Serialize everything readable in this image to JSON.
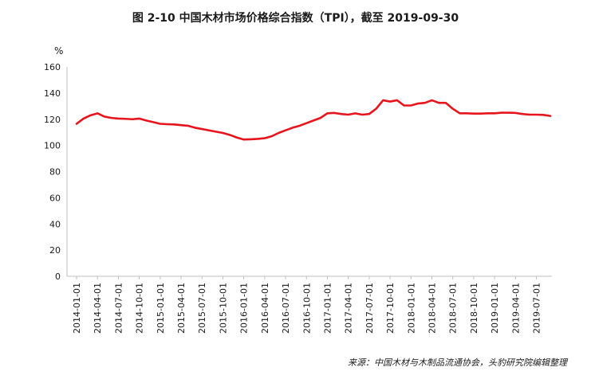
{
  "chart_data": {
    "type": "line",
    "title": "图 2-10 中国木材市场价格综合指数（TPI），截至 2019-09-30",
    "ylabel": "%",
    "source": "来源：中国木材与木制品流通协会，头豹研究院编辑整理",
    "ylim": [
      0,
      160
    ],
    "yticks": [
      0,
      20,
      40,
      60,
      80,
      100,
      120,
      140,
      160
    ],
    "xticks": [
      "2014-01-01",
      "2014-04-01",
      "2014-07-01",
      "2014-10-01",
      "2015-01-01",
      "2015-04-01",
      "2015-07-01",
      "2015-10-01",
      "2016-01-01",
      "2016-04-01",
      "2016-07-01",
      "2016-10-01",
      "2017-01-01",
      "2017-04-01",
      "2017-07-01",
      "2017-10-01",
      "2018-01-01",
      "2018-04-01",
      "2018-07-01",
      "2018-10-01",
      "2019-01-01",
      "2019-04-01",
      "2019-07-01"
    ],
    "grid": false,
    "series": [
      {
        "name": "",
        "color": "#e8141b",
        "x": [
          "2014-01",
          "2014-02",
          "2014-03",
          "2014-04",
          "2014-05",
          "2014-06",
          "2014-07",
          "2014-08",
          "2014-09",
          "2014-10",
          "2014-11",
          "2014-12",
          "2015-01",
          "2015-02",
          "2015-03",
          "2015-04",
          "2015-05",
          "2015-06",
          "2015-07",
          "2015-08",
          "2015-09",
          "2015-10",
          "2015-11",
          "2015-12",
          "2016-01",
          "2016-02",
          "2016-03",
          "2016-04",
          "2016-05",
          "2016-06",
          "2016-07",
          "2016-08",
          "2016-09",
          "2016-10",
          "2016-11",
          "2016-12",
          "2017-01",
          "2017-02",
          "2017-03",
          "2017-04",
          "2017-05",
          "2017-06",
          "2017-07",
          "2017-08",
          "2017-09",
          "2017-10",
          "2017-11",
          "2017-12",
          "2018-01",
          "2018-02",
          "2018-03",
          "2018-04",
          "2018-05",
          "2018-06",
          "2018-07",
          "2018-08",
          "2018-09",
          "2018-10",
          "2018-11",
          "2018-12",
          "2019-01",
          "2019-02",
          "2019-03",
          "2019-04",
          "2019-05",
          "2019-06",
          "2019-07",
          "2019-08",
          "2019-09"
        ],
        "values": [
          116.5,
          120.5,
          123,
          124.5,
          122,
          121,
          120.5,
          120.3,
          120,
          120.5,
          119,
          117.8,
          116.5,
          116.2,
          116,
          115.5,
          115,
          113.5,
          112.5,
          111.5,
          110.5,
          109.5,
          108,
          106,
          104.5,
          104.7,
          105,
          105.5,
          107,
          109.5,
          111.5,
          113.5,
          115,
          117,
          119,
          121,
          124.5,
          124.8,
          124,
          123.5,
          124.5,
          123.5,
          124,
          128,
          134.5,
          133.5,
          134.5,
          130.5,
          130.5,
          132,
          132.5,
          134.5,
          132.5,
          132.5,
          128,
          124.5,
          124.5,
          124.3,
          124.3,
          124.5,
          124.5,
          125,
          125,
          124.8,
          124,
          123.5,
          123.5,
          123.3,
          122.5
        ]
      }
    ]
  }
}
